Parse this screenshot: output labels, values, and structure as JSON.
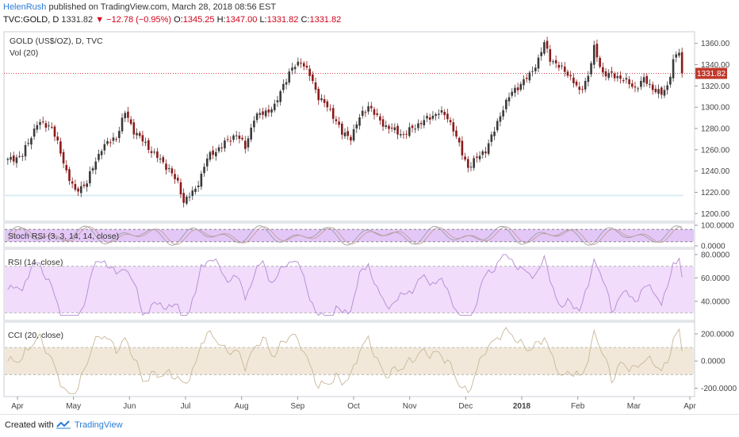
{
  "header": {
    "author": "HelenRush",
    "published": "published on TradingView.com, March 28, 2018 08:56 EST",
    "symbol": "TVC:GOLD, D",
    "last": "1331.82",
    "change": "−12.78 (−0.95%)",
    "o_label": "O:",
    "o_value": "1345.25",
    "h_label": "H:",
    "h_value": "1347.00",
    "l_label": "L:",
    "l_value": "1331.82",
    "c_label": "C:",
    "c_value": "1331.82"
  },
  "footer": {
    "created_with": "Created with",
    "brand": "TradingView"
  },
  "colors": {
    "up": "#3a3a3a",
    "down": "#8b1a1a",
    "stoch_band": "#e3c7f7",
    "rsi_band": "#f1dcfb",
    "cci_band": "#f2e8d9",
    "rsi_line": "#b48ad1",
    "cci_line": "#c9b79a",
    "last_price_bg": "#c0392b",
    "baseline": "#d8ecf3"
  },
  "chart_data": [
    {
      "type": "candlestick",
      "title": "GOLD (US$/OZ), D, TVC",
      "volume_label": "Vol (20)",
      "last_price": 1331.82,
      "ylim": [
        1195,
        1368
      ],
      "y_ticks": [
        "1200.00",
        "1220.00",
        "1240.00",
        "1260.00",
        "1280.00",
        "1300.00",
        "1320.00",
        "1340.00",
        "1360.00"
      ],
      "x_ticks": [
        "Apr",
        "May",
        "Jun",
        "Jul",
        "Aug",
        "Sep",
        "Oct",
        "Nov",
        "Dec",
        "2018",
        "Feb",
        "Mar",
        "Apr"
      ],
      "close_keypoints": [
        [
          0,
          1250
        ],
        [
          5,
          1255
        ],
        [
          10,
          1285
        ],
        [
          15,
          1282
        ],
        [
          20,
          1240
        ],
        [
          23,
          1220
        ],
        [
          27,
          1230
        ],
        [
          32,
          1262
        ],
        [
          37,
          1272
        ],
        [
          40,
          1295
        ],
        [
          43,
          1278
        ],
        [
          48,
          1262
        ],
        [
          52,
          1250
        ],
        [
          55,
          1242
        ],
        [
          58,
          1228
        ],
        [
          60,
          1212
        ],
        [
          64,
          1222
        ],
        [
          68,
          1252
        ],
        [
          73,
          1264
        ],
        [
          78,
          1275
        ],
        [
          81,
          1262
        ],
        [
          84,
          1290
        ],
        [
          88,
          1296
        ],
        [
          91,
          1300
        ],
        [
          94,
          1322
        ],
        [
          97,
          1336
        ],
        [
          100,
          1344
        ],
        [
          103,
          1330
        ],
        [
          106,
          1310
        ],
        [
          109,
          1300
        ],
        [
          112,
          1288
        ],
        [
          114,
          1275
        ],
        [
          117,
          1272
        ],
        [
          120,
          1290
        ],
        [
          123,
          1302
        ],
        [
          126,
          1290
        ],
        [
          129,
          1282
        ],
        [
          132,
          1278
        ],
        [
          135,
          1274
        ],
        [
          138,
          1280
        ],
        [
          141,
          1286
        ],
        [
          144,
          1290
        ],
        [
          147,
          1296
        ],
        [
          150,
          1290
        ],
        [
          152,
          1280
        ],
        [
          155,
          1256
        ],
        [
          157,
          1244
        ],
        [
          160,
          1252
        ],
        [
          163,
          1260
        ],
        [
          166,
          1278
        ],
        [
          169,
          1300
        ],
        [
          172,
          1314
        ],
        [
          175,
          1322
        ],
        [
          178,
          1330
        ],
        [
          181,
          1345
        ],
        [
          183,
          1360
        ],
        [
          185,
          1346
        ],
        [
          188,
          1338
        ],
        [
          191,
          1332
        ],
        [
          193,
          1324
        ],
        [
          195,
          1314
        ],
        [
          198,
          1330
        ],
        [
          200,
          1355
        ],
        [
          203,
          1332
        ],
        [
          206,
          1330
        ],
        [
          209,
          1328
        ],
        [
          212,
          1322
        ],
        [
          214,
          1318
        ],
        [
          217,
          1326
        ],
        [
          220,
          1318
        ],
        [
          223,
          1312
        ],
        [
          225,
          1320
        ],
        [
          227,
          1344
        ],
        [
          229,
          1352
        ],
        [
          230,
          1332
        ]
      ]
    },
    {
      "type": "line",
      "title": "Stoch RSI (3, 3, 14, 14, close)",
      "ylim": [
        0,
        100
      ],
      "y_ticks": [
        "100.0000",
        "0.0000"
      ],
      "band": [
        20,
        80
      ]
    },
    {
      "type": "line",
      "title": "RSI (14, close)",
      "ylim": [
        25,
        82
      ],
      "y_ticks": [
        "80.0000",
        "60.0000",
        "40.0000"
      ],
      "band": [
        30,
        70
      ]
    },
    {
      "type": "line",
      "title": "CCI (20, close)",
      "ylim": [
        -250,
        270
      ],
      "y_ticks": [
        "200.0000",
        "0.0000",
        "-200.0000"
      ],
      "band": [
        -100,
        100
      ]
    }
  ]
}
